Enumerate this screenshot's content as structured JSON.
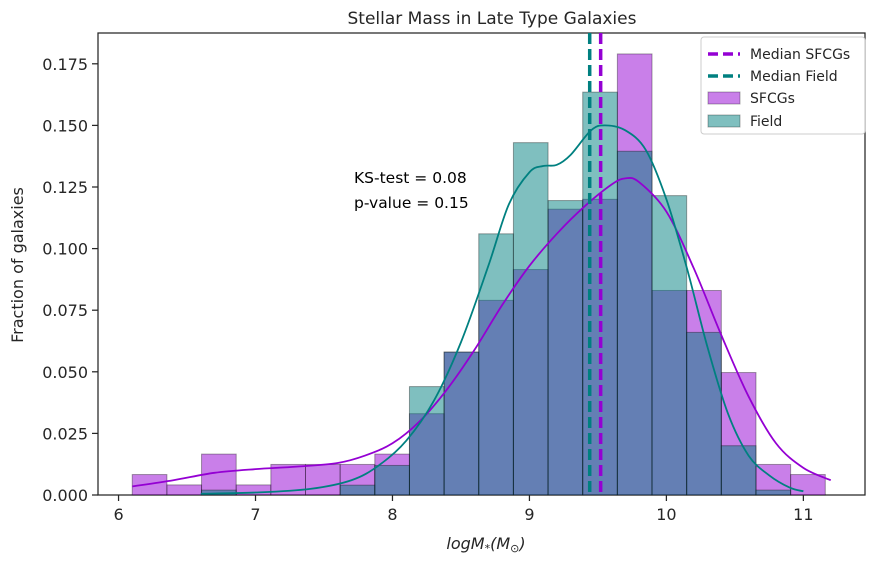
{
  "chart_data": {
    "type": "histogram",
    "title": "Stellar Mass in Late Type Galaxies",
    "xlabel": "logM*(M⊙)",
    "ylabel": "Fraction of galaxies",
    "xlim": [
      5.85,
      11.45
    ],
    "ylim": [
      0,
      0.1875
    ],
    "xticks": [
      6,
      7,
      8,
      9,
      10,
      11
    ],
    "yticks": [
      0.0,
      0.025,
      0.05,
      0.075,
      0.1,
      0.125,
      0.15,
      0.175
    ],
    "ytick_labels": [
      "0.000",
      "0.025",
      "0.050",
      "0.075",
      "0.100",
      "0.125",
      "0.150",
      "0.175"
    ],
    "grid": false,
    "legend_position": "top-right",
    "bin_edges": [
      6.1,
      6.353,
      6.606,
      6.859,
      7.112,
      7.365,
      7.618,
      7.871,
      8.124,
      8.377,
      8.63,
      8.883,
      9.136,
      9.389,
      9.642,
      9.895,
      10.148,
      10.401,
      10.654,
      10.907,
      11.16
    ],
    "series": [
      {
        "name": "SFCGs",
        "kind": "histogram",
        "color": "#9400D3",
        "values": [
          0.0083,
          0.0041,
          0.0166,
          0.0041,
          0.0124,
          0.0124,
          0.0124,
          0.0166,
          0.033,
          0.058,
          0.079,
          0.0915,
          0.116,
          0.12,
          0.179,
          0.083,
          0.083,
          0.0497,
          0.0124,
          0.0083
        ]
      },
      {
        "name": "Field",
        "kind": "histogram",
        "color": "#008080",
        "values": [
          0,
          0,
          0.002,
          0,
          0,
          0,
          0.004,
          0.012,
          0.044,
          0.058,
          0.106,
          0.143,
          0.1195,
          0.1635,
          0.1395,
          0.1215,
          0.066,
          0.02,
          0.002,
          0
        ]
      }
    ],
    "kde": [
      {
        "name": "SFCGs",
        "color": "#9400D3",
        "x": [
          6.1,
          6.4,
          6.7,
          7.0,
          7.3,
          7.6,
          7.8,
          8.0,
          8.2,
          8.4,
          8.6,
          8.8,
          9.0,
          9.2,
          9.4,
          9.6,
          9.7,
          9.8,
          10.0,
          10.2,
          10.4,
          10.6,
          10.8,
          11.0,
          11.2
        ],
        "y": [
          0.0035,
          0.006,
          0.009,
          0.0105,
          0.0115,
          0.013,
          0.016,
          0.021,
          0.03,
          0.043,
          0.059,
          0.077,
          0.093,
          0.106,
          0.117,
          0.126,
          0.1285,
          0.127,
          0.115,
          0.092,
          0.065,
          0.04,
          0.021,
          0.011,
          0.006
        ]
      },
      {
        "name": "Field",
        "color": "#008080",
        "x": [
          6.6,
          7.0,
          7.4,
          7.7,
          7.9,
          8.1,
          8.3,
          8.5,
          8.7,
          8.85,
          9.0,
          9.1,
          9.2,
          9.3,
          9.45,
          9.55,
          9.7,
          9.85,
          10.0,
          10.15,
          10.3,
          10.45,
          10.6,
          10.75,
          10.9,
          11.0
        ],
        "y": [
          0.0005,
          0.001,
          0.0025,
          0.006,
          0.012,
          0.022,
          0.038,
          0.062,
          0.093,
          0.118,
          0.131,
          0.1335,
          0.134,
          0.138,
          0.148,
          0.15,
          0.148,
          0.14,
          0.12,
          0.092,
          0.06,
          0.033,
          0.016,
          0.008,
          0.003,
          0.0015
        ]
      }
    ],
    "vlines": [
      {
        "name": "Median SFCGs",
        "x": 9.52,
        "color": "#9400D3"
      },
      {
        "name": "Median Field",
        "x": 9.44,
        "color": "#008080"
      }
    ],
    "annotations": [
      "KS-test = 0.08",
      "p-value = 0.15"
    ]
  }
}
